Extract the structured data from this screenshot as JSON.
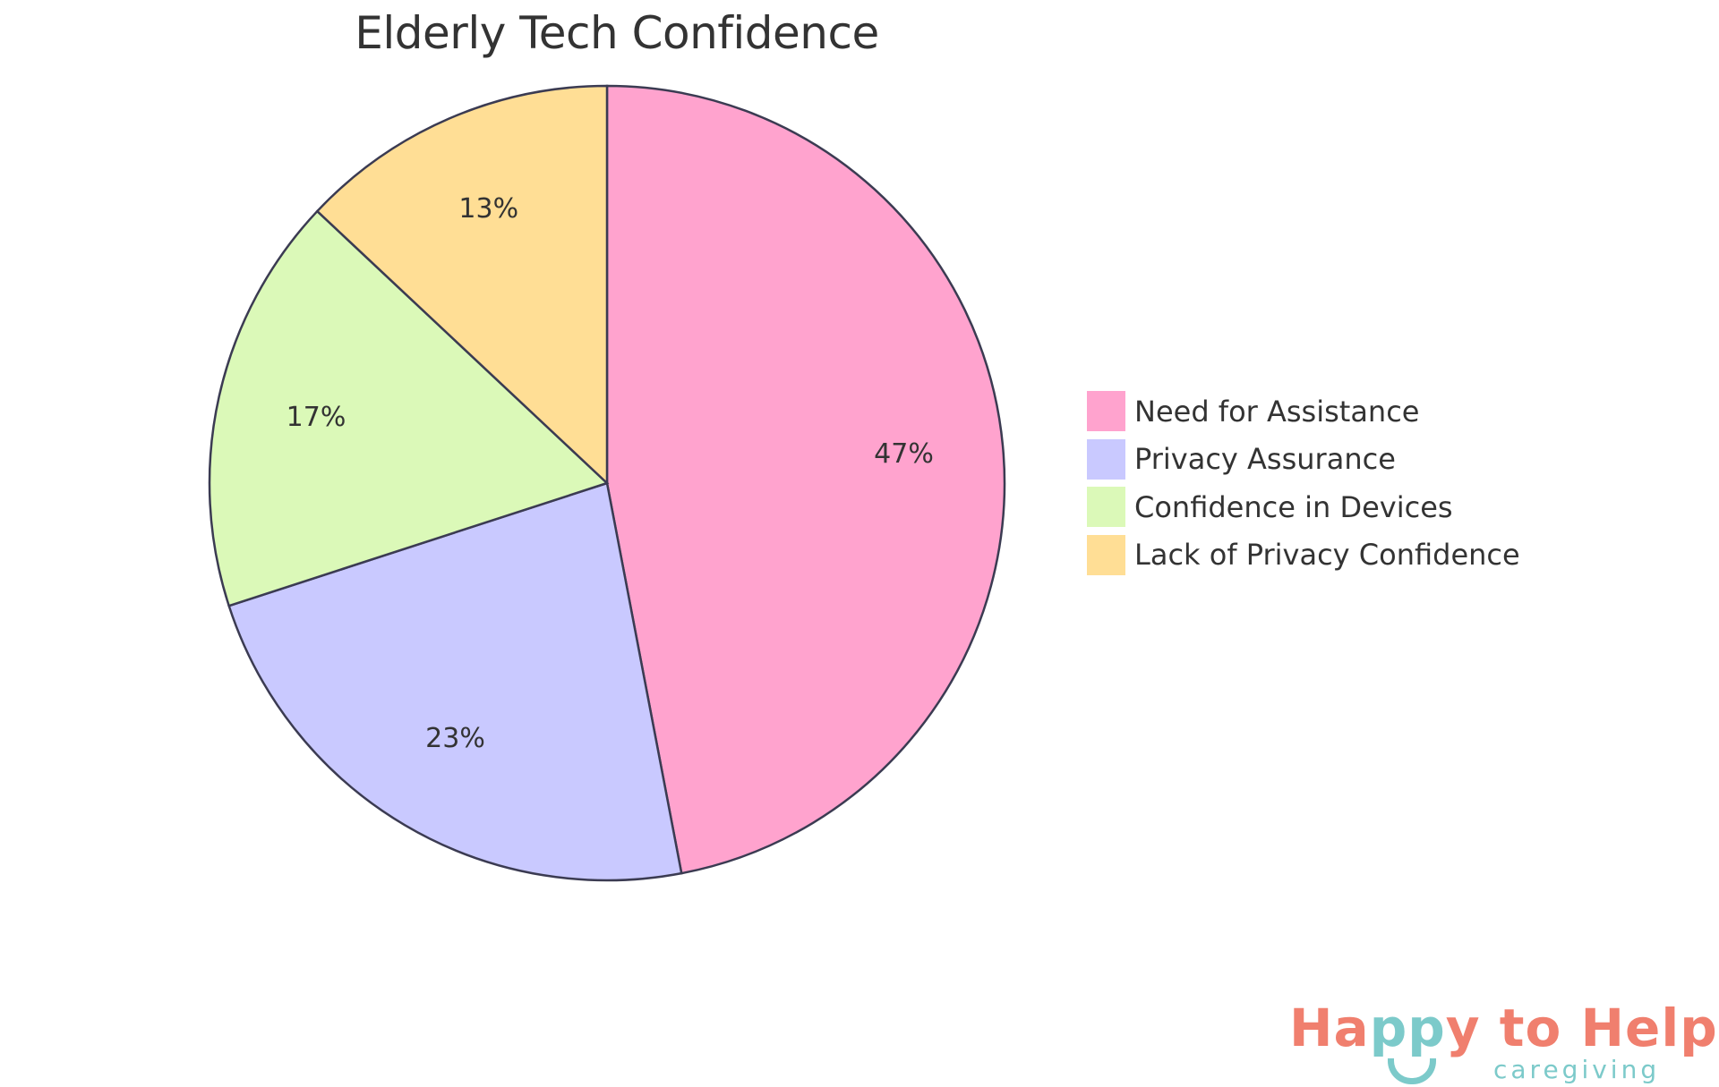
{
  "chart_data": {
    "type": "pie",
    "title": "Elderly Tech Confidence",
    "categories": [
      "Need for Assistance",
      "Privacy Assurance",
      "Confidence in Devices",
      "Lack of Privacy Confidence"
    ],
    "values": [
      47,
      23,
      17,
      13
    ],
    "labels": [
      "47%",
      "23%",
      "17%",
      "13%"
    ],
    "colors": [
      "#FFA3CE",
      "#C9C9FF",
      "#DBF9B8",
      "#FFDE95"
    ],
    "stroke_color": "#3B3B52",
    "legend_position": "right",
    "start_angle": "top, clockwise"
  },
  "legend": {
    "items": [
      {
        "label": "Need for Assistance",
        "color": "#FFA3CE"
      },
      {
        "label": "Privacy Assurance",
        "color": "#C9C9FF"
      },
      {
        "label": "Confidence in Devices",
        "color": "#DBF9B8"
      },
      {
        "label": "Lack of Privacy Confidence",
        "color": "#FFDE95"
      }
    ]
  },
  "logo": {
    "part1": "Ha",
    "part2": "pp",
    "part3": "y to Help",
    "subtitle": "caregiving",
    "primary_color": "#F07F6E",
    "secondary_color": "#7CCACA"
  }
}
